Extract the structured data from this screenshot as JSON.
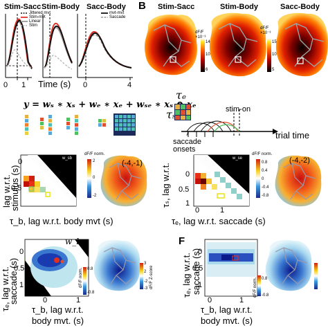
{
  "panel_a": {
    "titles": [
      "Stim-Sacc",
      "Stim-Body",
      "Sacc-Body"
    ],
    "legend1": [
      "Jittered mvt",
      "Stim-mvt",
      "Linear",
      "Stim"
    ],
    "legend2": [
      "mvt-mvt",
      "Saccade"
    ],
    "xticks1": [
      "0",
      "1"
    ],
    "xticks3": [
      "0",
      "4"
    ],
    "xlabel": "Time (s)"
  },
  "panel_b": {
    "letter": "B",
    "titles": [
      "Stim-Sacc",
      "Stim-Body",
      "Sacc-Body"
    ],
    "cbar1": {
      "unit": "dF/F",
      "scale": "×10⁻³",
      "ticks": [
        "14",
        "10",
        "6"
      ]
    },
    "cbar2": {
      "unit": "dF/F",
      "scale": "×10⁻³",
      "ticks": [
        "15",
        "10",
        "5"
      ]
    }
  },
  "equation": "y = wₛ ∗ xₛ + wₑ ∗ xₑ + wₛₑ ∗ xₛ ⊗ xₑ",
  "timeline": {
    "tau_e": "τₑ",
    "tau_s": "τₛ",
    "stim_on": "stim-on",
    "saccade_onsets": "saccade onsets",
    "trial_time": "trial time"
  },
  "panel_c": {
    "weight_label": "w_sb",
    "cbar_title": "dF/F norm.",
    "cbar_ticks": [
      "2",
      "0",
      "-2"
    ],
    "ylabel_top": "lag w.r.t.",
    "ylabel_bottom": "stimulus (s)",
    "yticks": [
      "0",
      "0.5"
    ],
    "xlabel": "τ_b, lag w.r.t. body mvt (s)",
    "coord": "(-4,-1)"
  },
  "panel_d": {
    "weight_label": "w_se",
    "cbar_title": "dF/F norm.",
    "cbar_ticks": [
      "0.8",
      "0.4",
      "0",
      "-0.4",
      "-0.8"
    ],
    "ylabel": "τₛ, lag w.r.t.",
    "yticks": [
      "0",
      "0.5",
      "1"
    ],
    "xticks": [
      "0",
      "1"
    ],
    "xlabel": "τₑ, lag w.r.t. saccade (s)",
    "coord": "(-4,-2)"
  },
  "panel_e": {
    "weight_label": "w_be",
    "ylabel_top": "τₑ, lag w.r.t.",
    "ylabel_bottom": "saccade (s)",
    "yticks": [
      "0",
      "0.5",
      "1"
    ],
    "xticks": [
      "0",
      "1"
    ],
    "xlabel_top": "τ_b, lag w.r.t.",
    "xlabel_bottom": "body mvt. (s)",
    "cbar_left_title": "dF/F norm.",
    "cbar_left_ticks": [
      "0.8",
      "-0.8"
    ],
    "cbar_right_title": "dF/F Z-score",
    "cbar_right_ticks": [
      "3",
      "2",
      "-2",
      "-3"
    ]
  },
  "panel_f": {
    "letter": "F",
    "ylabel_top": "τₑ, lag w.r.t.",
    "ylabel_bottom": "saccade (s)",
    "yticks": [
      "0",
      "0.5",
      "1"
    ],
    "xticks": [
      "0",
      "1"
    ],
    "xlabel_top": "τ_b, lag w.r.t.",
    "xlabel_bottom": "body mvt. (s)",
    "cbar_ticks": [
      "0.8",
      "-0.8"
    ],
    "cbar_title": "dF/F norm."
  },
  "colors": {
    "red": "#e0342a",
    "black": "#111111",
    "gray": "#9a9a9a",
    "blue": "#2b55b0",
    "teal": "#8fd0c8"
  }
}
